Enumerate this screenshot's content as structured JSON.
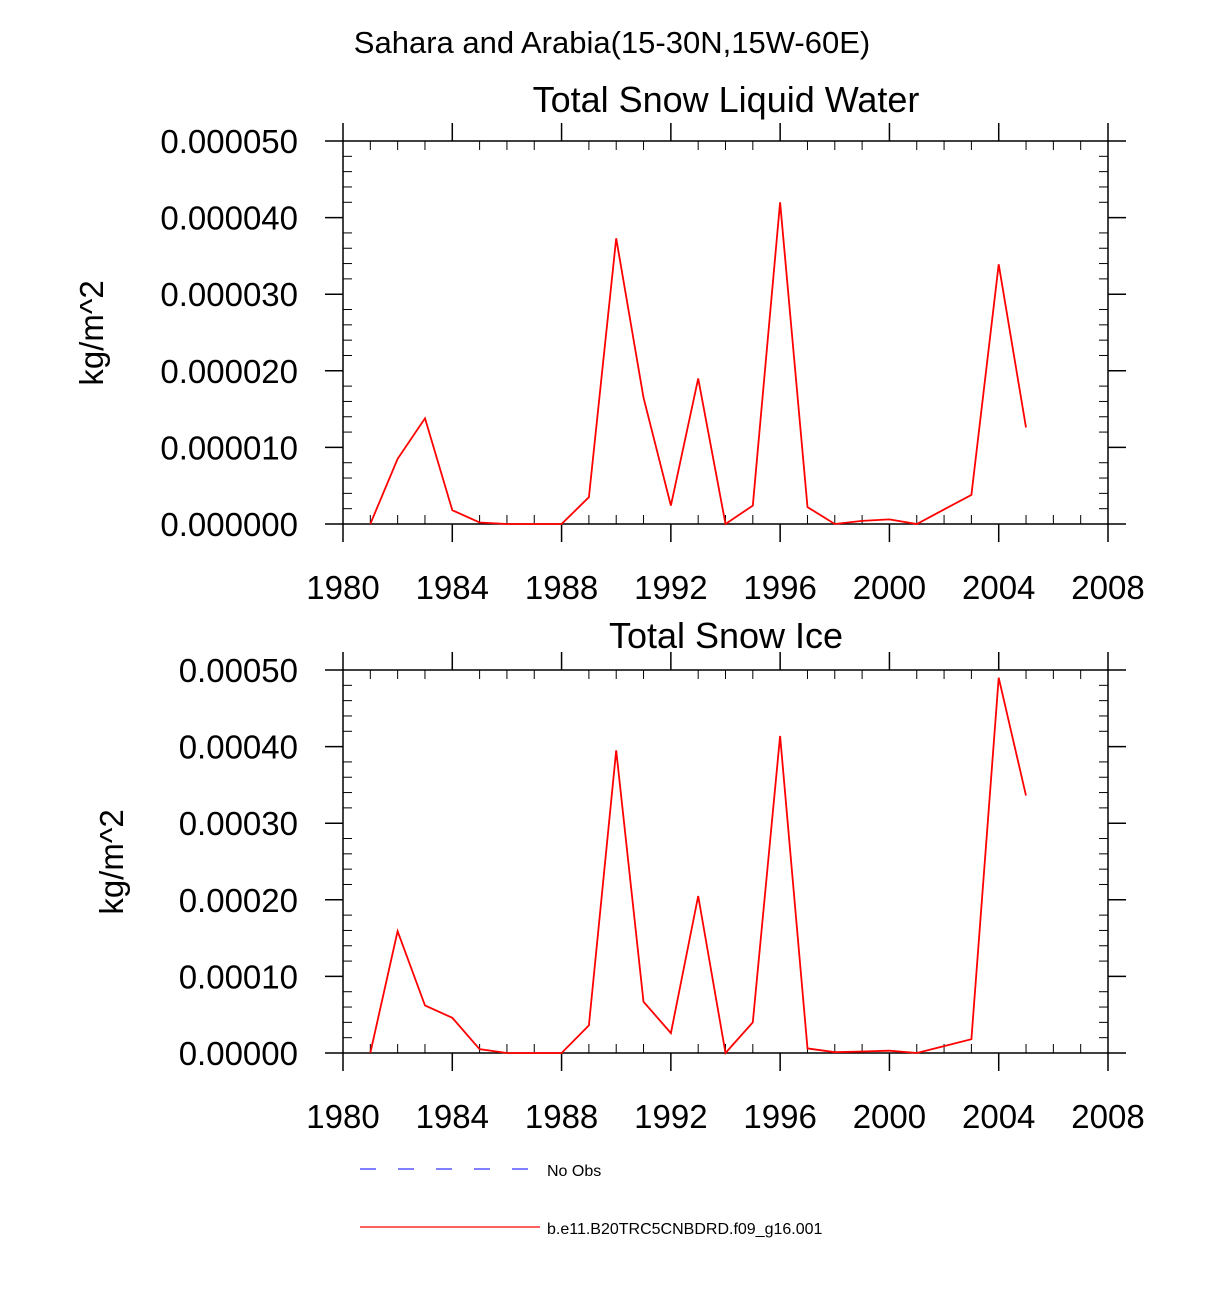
{
  "figure": {
    "suptitle": "Sahara and Arabia(15-30N,15W-60E)"
  },
  "legend": [
    {
      "label": "No Obs",
      "color": "#3333ff",
      "style": "dashed"
    },
    {
      "label": "b.e11.B20TRC5CNBDRD.f09_g16.001",
      "color": "#ff0000",
      "style": "solid"
    }
  ],
  "chart_data": [
    {
      "type": "line",
      "title": "Total Snow Liquid Water",
      "xlabel": "",
      "ylabel": "kg/m^2",
      "xlim": [
        1980,
        2008
      ],
      "ylim": [
        0,
        5e-05
      ],
      "xticks": [
        1980,
        1984,
        1988,
        1992,
        1996,
        2000,
        2004,
        2008
      ],
      "xtick_labels": [
        "1980",
        "1984",
        "1988",
        "1992",
        "1996",
        "2000",
        "2004",
        "2008"
      ],
      "yticks": [
        0,
        1e-05,
        2e-05,
        3e-05,
        4e-05,
        5e-05
      ],
      "ytick_labels": [
        "0.000000",
        "0.000010",
        "0.000020",
        "0.000030",
        "0.000040",
        "0.000050"
      ],
      "series": [
        {
          "name": "b.e11.B20TRC5CNBDRD.f09_g16.001",
          "color": "#ff0000",
          "x": [
            1981,
            1982,
            1983,
            1984,
            1985,
            1986,
            1987,
            1988,
            1989,
            1990,
            1991,
            1992,
            1993,
            1994,
            1995,
            1996,
            1997,
            1998,
            1999,
            2000,
            2001,
            2002,
            2003,
            2004,
            2005
          ],
          "y": [
            0.0,
            8.5e-06,
            1.38e-05,
            1.8e-06,
            2e-07,
            0.0,
            0.0,
            0.0,
            3.5e-06,
            3.73e-05,
            1.65e-05,
            2.4e-06,
            1.9e-05,
            0.0,
            2.4e-06,
            4.2e-05,
            2.2e-06,
            0.0,
            4e-07,
            6e-07,
            0.0,
            1.9e-06,
            3.8e-06,
            3.39e-05,
            1.26e-05
          ]
        }
      ]
    },
    {
      "type": "line",
      "title": "Total Snow Ice",
      "xlabel": "",
      "ylabel": "kg/m^2",
      "xlim": [
        1980,
        2008
      ],
      "ylim": [
        0,
        0.0005
      ],
      "xticks": [
        1980,
        1984,
        1988,
        1992,
        1996,
        2000,
        2004,
        2008
      ],
      "xtick_labels": [
        "1980",
        "1984",
        "1988",
        "1992",
        "1996",
        "2000",
        "2004",
        "2008"
      ],
      "yticks": [
        0,
        0.0001,
        0.0002,
        0.0003,
        0.0004,
        0.0005
      ],
      "ytick_labels": [
        "0.00000",
        "0.00010",
        "0.00020",
        "0.00030",
        "0.00040",
        "0.00050"
      ],
      "series": [
        {
          "name": "b.e11.B20TRC5CNBDRD.f09_g16.001",
          "color": "#ff0000",
          "x": [
            1981,
            1982,
            1983,
            1984,
            1985,
            1986,
            1987,
            1988,
            1989,
            1990,
            1991,
            1992,
            1993,
            1994,
            1995,
            1996,
            1997,
            1998,
            1999,
            2000,
            2001,
            2002,
            2003,
            2004,
            2005
          ],
          "y": [
            0.0,
            0.000159,
            6.2e-05,
            4.6e-05,
            5e-06,
            0.0,
            0.0,
            0.0,
            3.6e-05,
            0.000395,
            6.7e-05,
            2.6e-05,
            0.000205,
            0.0,
            4e-05,
            0.000414,
            6e-06,
            1e-06,
            2e-06,
            3e-06,
            0.0,
            9e-06,
            1.8e-05,
            0.00049,
            0.000336
          ]
        }
      ]
    }
  ]
}
